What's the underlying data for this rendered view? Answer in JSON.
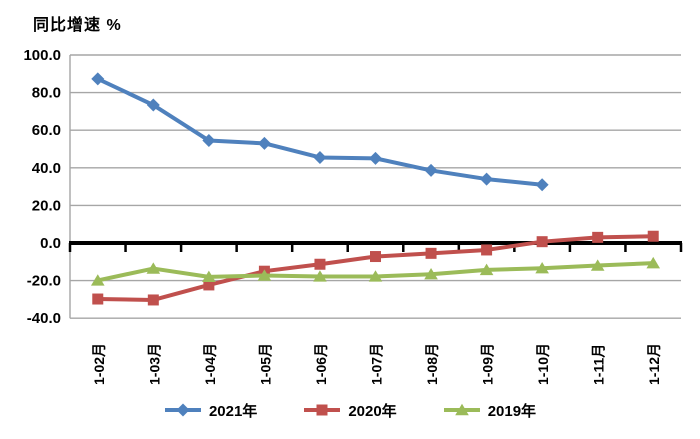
{
  "chart_data": {
    "type": "line",
    "title": "同比增速 %",
    "categories": [
      "1-02月",
      "1-03月",
      "1-04月",
      "1-05月",
      "1-06月",
      "1-07月",
      "1-08月",
      "1-09月",
      "1-10月",
      "1-11月",
      "1-12月"
    ],
    "series": [
      {
        "name": "2021年",
        "color": "#4F81BD",
        "marker": "diamond",
        "values": [
          87.3,
          73.4,
          54.5,
          53.0,
          45.5,
          45.0,
          38.6,
          34.0,
          31.0,
          null,
          null
        ]
      },
      {
        "name": "2020年",
        "color": "#C0504D",
        "marker": "square",
        "values": [
          -29.8,
          -30.3,
          -22.3,
          -15.0,
          -11.3,
          -7.2,
          -5.5,
          -3.7,
          0.7,
          3.0,
          3.6
        ]
      },
      {
        "name": "2019年",
        "color": "#9BBB59",
        "marker": "triangle",
        "values": [
          -19.9,
          -13.6,
          -18.0,
          -17.3,
          -17.8,
          -17.8,
          -16.6,
          -14.3,
          -13.4,
          -12.0,
          -10.7
        ]
      }
    ],
    "ylim": [
      -40,
      100
    ],
    "ytick_step": 20,
    "ytick_labels": [
      "100.0",
      "80.0",
      "60.0",
      "40.0",
      "20.0",
      "0.0",
      "-20.0",
      "-40.0"
    ],
    "grid": true,
    "legend_position": "bottom",
    "axis_color": "#000000",
    "gridline_color": "#A6A6A6"
  }
}
